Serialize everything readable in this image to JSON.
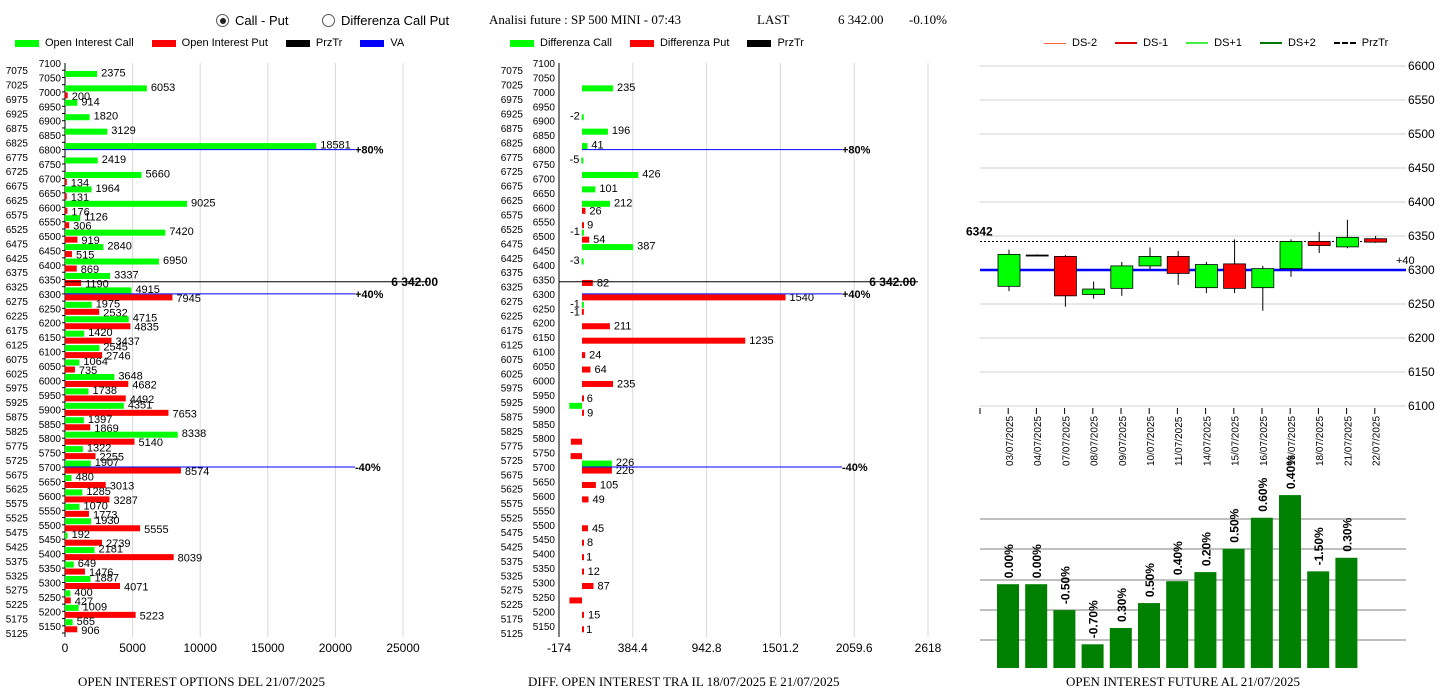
{
  "header": {
    "radio_options": [
      {
        "label": "Call - Put",
        "selected": true
      },
      {
        "label": "Differenza Call Put",
        "selected": false
      }
    ],
    "title": "Analisi future : SP 500 MINI - 07:43",
    "last_label": "LAST",
    "last_value": "6 342.00",
    "change": "-0.10%"
  },
  "colors": {
    "green": "#00ff00",
    "red": "#ff0000",
    "black": "#000000",
    "blue": "#0000ff",
    "dark_green": "#008000",
    "dark_red": "#cc0000",
    "orange": "#ff6633"
  },
  "footers": {
    "left": "OPEN INTEREST OPTIONS DEL 21/07/2025",
    "middle": "DIFF. OPEN INTEREST TRA IL 18/07/2025 E 21/07/2025",
    "right": "OPEN INTEREST FUTURE AL 21/07/2025"
  },
  "chart_data": [
    {
      "type": "bar",
      "orientation": "horizontal",
      "legend": [
        "Open Interest Call",
        "Open Interest Put",
        "PrzTr",
        "VA"
      ],
      "legend_placement": "top",
      "y_tick_labels": [
        "7075",
        "7050",
        "7025",
        "7000",
        "6975",
        "6950",
        "6925",
        "6900",
        "6875",
        "6850",
        "6825",
        "6800",
        "6775",
        "6750",
        "6725",
        "6700",
        "6675",
        "6650",
        "6625",
        "6600",
        "6575",
        "6550",
        "6525",
        "6500",
        "6475",
        "6450",
        "6425",
        "6400",
        "6375",
        "6350",
        "6325",
        "6300",
        "6275",
        "6250",
        "6225",
        "6200",
        "6175",
        "6150",
        "6125",
        "6100",
        "6075",
        "6050",
        "6025",
        "6000",
        "5975",
        "5950",
        "5925",
        "5900",
        "5875",
        "5850",
        "5825",
        "5800",
        "5775",
        "5750",
        "5725",
        "5700",
        "5675",
        "5650",
        "5625",
        "5600",
        "5575",
        "5550",
        "5525",
        "5500",
        "5475",
        "5450",
        "5425",
        "5400",
        "5375",
        "5350",
        "5325",
        "5300",
        "5275",
        "5250",
        "5225",
        "5200",
        "5175",
        "5150",
        "5125"
      ],
      "y_top_label": "7100",
      "x_ticks": [
        "0",
        "5000",
        "10000",
        "15000",
        "20000",
        "25000"
      ],
      "xlim": [
        0,
        25000
      ],
      "strikes": [
        7050,
        7000,
        6950,
        6900,
        6850,
        6800,
        6750,
        6700,
        6650,
        6600,
        6550,
        6500,
        6450,
        6400,
        6350,
        6300,
        6250,
        6200,
        6150,
        6100,
        6050,
        6000,
        5950,
        5900,
        5850,
        5800,
        5750,
        5700,
        5650,
        5600,
        5550,
        5500,
        5450,
        5400,
        5350,
        5300,
        5250,
        5200,
        5150
      ],
      "call": [
        2375,
        6053,
        914,
        1820,
        3129,
        18581,
        2419,
        5660,
        1964,
        9025,
        1126,
        7420,
        2840,
        6950,
        3337,
        4915,
        1975,
        4715,
        1420,
        2545,
        1064,
        3648,
        1738,
        4351,
        1397,
        8338,
        1322,
        1907,
        480,
        1285,
        1070,
        1930,
        192,
        2181,
        649,
        1887,
        400,
        1009,
        565
      ],
      "put": [
        null,
        200,
        null,
        null,
        null,
        null,
        null,
        134,
        131,
        176,
        306,
        919,
        515,
        869,
        1190,
        7945,
        2532,
        4835,
        3437,
        2746,
        735,
        4682,
        4492,
        7653,
        1869,
        5140,
        2255,
        8574,
        3013,
        3287,
        1773,
        5555,
        2739,
        8039,
        1476,
        4071,
        427,
        5223,
        906
      ],
      "przTr": {
        "strike": 6342,
        "label": "6 342.00"
      },
      "markers": [
        {
          "strike": 6800,
          "label": "+80%"
        },
        {
          "strike": 6300,
          "label": "+40%"
        },
        {
          "strike": 5700,
          "label": "-40%"
        }
      ]
    },
    {
      "type": "bar",
      "orientation": "horizontal",
      "legend": [
        "Differenza Call",
        "Differenza Put",
        "PrzTr"
      ],
      "legend_placement": "top",
      "x_ticks": [
        "-174",
        "384.4",
        "942.8",
        "1501.2",
        "2059.6",
        "2618"
      ],
      "xlim": [
        -174,
        2618
      ],
      "values": [
        {
          "strike": 7000,
          "call": 235
        },
        {
          "strike": 6900,
          "call": -2
        },
        {
          "strike": 6850,
          "call": 196
        },
        {
          "strike": 6800,
          "call": 41
        },
        {
          "strike": 6750,
          "call": -5
        },
        {
          "strike": 6700,
          "call": 426
        },
        {
          "strike": 6650,
          "call": 101
        },
        {
          "strike": 6600,
          "call": 212,
          "put": 26
        },
        {
          "strike": 6550,
          "put": 9
        },
        {
          "strike": 6500,
          "call": -1,
          "put": 54
        },
        {
          "strike": 6450,
          "call": 387
        },
        {
          "strike": 6400,
          "call": -3
        },
        {
          "strike": 6350,
          "put": 82
        },
        {
          "strike": 6300,
          "put": 1540
        },
        {
          "strike": 6250,
          "call": -1,
          "put": -1
        },
        {
          "strike": 6200,
          "put": 211
        },
        {
          "strike": 6150,
          "put": 1235
        },
        {
          "strike": 6100,
          "put": 24
        },
        {
          "strike": 6050,
          "put": 64
        },
        {
          "strike": 6000,
          "put": 235
        },
        {
          "strike": 5950,
          "put": 6
        },
        {
          "strike": 5900,
          "call": -96,
          "put": 9
        },
        {
          "strike": 5800,
          "put": -84
        },
        {
          "strike": 5750,
          "put": -86
        },
        {
          "strike": 5700,
          "call": 226,
          "put": 226
        },
        {
          "strike": 5650,
          "put": 105
        },
        {
          "strike": 5600,
          "put": 49
        },
        {
          "strike": 5500,
          "put": 45
        },
        {
          "strike": 5450,
          "put": 8
        },
        {
          "strike": 5400,
          "put": 1
        },
        {
          "strike": 5350,
          "put": 12
        },
        {
          "strike": 5300,
          "put": 87
        },
        {
          "strike": 5250,
          "put": -95
        },
        {
          "strike": 5200,
          "put": 15
        },
        {
          "strike": 5150,
          "put": 1
        }
      ],
      "przTr": {
        "strike": 6342,
        "label": "6 342.00"
      },
      "markers": [
        {
          "strike": 6800,
          "label": "+80%"
        },
        {
          "strike": 6300,
          "label": "+40%"
        },
        {
          "strike": 5700,
          "label": "-40%"
        }
      ]
    },
    {
      "type": "candlestick",
      "legend": [
        "DS-2",
        "DS-1",
        "DS+1",
        "DS+2",
        "PrzTr"
      ],
      "legend_placement": "top",
      "ylim": [
        6100,
        6600
      ],
      "y_ticks": [
        "6100",
        "6150",
        "6200",
        "6250",
        "6300",
        "6350",
        "6400",
        "6450",
        "6500",
        "6550",
        "6600"
      ],
      "last_label": "6342",
      "va_level": 6300,
      "va_label": "+40",
      "dates": [
        "03/07/2025",
        "04/07/2025",
        "07/07/2025",
        "08/07/2025",
        "09/07/2025",
        "10/07/2025",
        "11/07/2025",
        "14/07/2025",
        "15/07/2025",
        "16/07/2025",
        "17/07/2025",
        "18/07/2025",
        "21/07/2025",
        "22/07/2025"
      ],
      "candles": [
        {
          "open": 6276,
          "close": 6323,
          "high": 6330,
          "low": 6269,
          "dir": "up"
        },
        {
          "open": 6322,
          "close": 6322,
          "high": 6323,
          "low": 6321,
          "dir": "flat"
        },
        {
          "open": 6320,
          "close": 6262,
          "high": 6322,
          "low": 6246,
          "dir": "down"
        },
        {
          "open": 6264,
          "close": 6272,
          "high": 6283,
          "low": 6258,
          "dir": "up"
        },
        {
          "open": 6273,
          "close": 6306,
          "high": 6312,
          "low": 6262,
          "dir": "up"
        },
        {
          "open": 6306,
          "close": 6320,
          "high": 6333,
          "low": 6300,
          "dir": "up"
        },
        {
          "open": 6320,
          "close": 6295,
          "high": 6328,
          "low": 6278,
          "dir": "down"
        },
        {
          "open": 6274,
          "close": 6308,
          "high": 6312,
          "low": 6266,
          "dir": "up"
        },
        {
          "open": 6309,
          "close": 6273,
          "high": 6345,
          "low": 6266,
          "dir": "down"
        },
        {
          "open": 6274,
          "close": 6302,
          "high": 6306,
          "low": 6240,
          "dir": "up"
        },
        {
          "open": 6302,
          "close": 6342,
          "high": 6345,
          "low": 6290,
          "dir": "up"
        },
        {
          "open": 6342,
          "close": 6336,
          "high": 6356,
          "low": 6325,
          "dir": "down"
        },
        {
          "open": 6334,
          "close": 6348,
          "high": 6374,
          "low": 6332,
          "dir": "up"
        },
        {
          "open": 6346,
          "close": 6341,
          "high": 6350,
          "low": 6340,
          "dir": "down"
        }
      ]
    },
    {
      "type": "bar",
      "labels": [
        "0.00%",
        "0.00%",
        "-0.50%",
        "-0.70%",
        "0.30%",
        "0.50%",
        "0.40%",
        "0.20%",
        "0.50%",
        "0.60%",
        "0.40%",
        "-1.50%",
        "0.30%"
      ],
      "values": [
        0.555,
        0.555,
        0.383,
        0.157,
        0.265,
        0.43,
        0.575,
        0.635,
        0.79,
        0.995,
        1.145,
        0.64,
        0.73
      ],
      "value_unit": "relative height (0 = axis base, 1 = chart top)",
      "grid": true
    }
  ]
}
